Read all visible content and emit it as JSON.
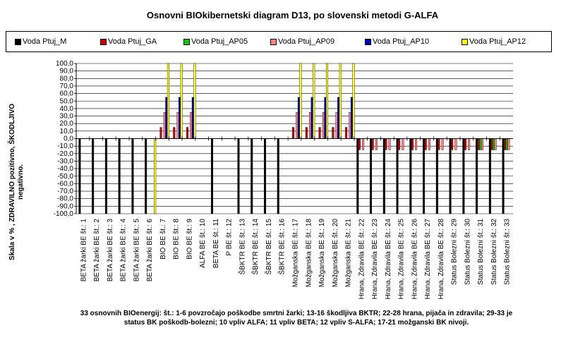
{
  "chart_data": {
    "type": "bar",
    "title": "Osnovni BIOkibernetski diagram D13, po slovenski metodi G-ALFA",
    "ylabel": "Skala v % , ZDRAVILNO pozitivno, ŠKODLJIVO negativno.",
    "xlabel": "33 osnovnih BIOenergij: št.: 1-6 povzročajo poškodbe smrtni žarki; 13-16 škodljiva BKTR; 22-28 hrana, pijača in zdravila; 29-33 je status BK poškodb-bolezni; 10 vpliv ALFA; 11 vpliv BETA; 12 vpliv S-ALFA; 17-21 možganski BK nivoji.",
    "ylim": [
      -100,
      100
    ],
    "ytick_step": 10,
    "y_ticks": [
      "100,0",
      "90,0",
      "80,0",
      "70,0",
      "60,0",
      "50,0",
      "40,0",
      "30,0",
      "20,0",
      "10,0",
      "0,0",
      "-10,0",
      "-20,0",
      "-30,0",
      "-40,0",
      "-50,0",
      "-60,0",
      "-70,0",
      "-80,0",
      "-90,0",
      "-100,0"
    ],
    "grid": true,
    "legend_position": "top",
    "categories": [
      "BETA žarki BE št.: 1",
      "BETA žarki BE št.: 2",
      "BETA žarki BE št.: 3",
      "BETA žarki BE št.: 4",
      "BETA žarki BE št.: 5",
      "BETA žarki BE št.: 6",
      "BIO BE št.: 7",
      "BIO BE št.: 8",
      "BIO BE št.: 9",
      "ALFA BE št.: 10",
      "BETA BE št.: 11",
      "P BE št.: 12",
      "ŠBKTR BE št.: 13",
      "ŠBKTR BE št.: 14",
      "ŠBKTR BE št.: 15",
      "ŠBKTR BE št.: 16",
      "Možganska BE št.: 17",
      "Možganska BE št.: 18",
      "Možganska BE št.: 19",
      "Možganska BE št.: 20",
      "Možganska BE št.: 21",
      "Hrana, Zdravila BE št.: 22",
      "Hrana, Zdravila BE št.: 23",
      "Hrana, Zdravila BE št.: 24",
      "Hrana, Zdravila BE št.: 25",
      "Hrana, Zdravila BE št.: 26",
      "Hrana, Zdravila BE št.: 27",
      "Hrana, Zdravila BE št.: 28",
      "Status Bolezni št.: 29",
      "Status Bolezni št.: 30",
      "Status Bolezni št.: 31",
      "Status Bolezni št.: 32",
      "Status Bolezni št.: 33"
    ],
    "series": [
      {
        "name": "Voda Ptuj_M",
        "color": "#000000",
        "values": [
          -100,
          -100,
          -100,
          -100,
          -100,
          -100,
          0,
          0,
          0,
          0,
          -100,
          0,
          -100,
          -100,
          -100,
          -100,
          0,
          0,
          0,
          0,
          0,
          -100,
          -100,
          -100,
          -100,
          -100,
          -100,
          -100,
          -100,
          -100,
          -100,
          -100,
          -100
        ]
      },
      {
        "name": "Voda Ptuj_GA",
        "color": "#cc0000",
        "values": [
          0,
          0,
          0,
          0,
          0,
          0,
          15,
          15,
          15,
          0,
          0,
          0,
          0,
          0,
          0,
          0,
          15,
          15,
          15,
          15,
          15,
          -15,
          -15,
          -15,
          -15,
          -15,
          -15,
          -15,
          -15,
          -15,
          -15,
          -15,
          -15
        ]
      },
      {
        "name": "Voda Ptuj_AP05",
        "color": "#00cc00",
        "values": [
          0,
          0,
          0,
          0,
          0,
          0,
          0,
          0,
          0,
          0,
          0,
          0,
          0,
          0,
          0,
          0,
          0,
          0,
          0,
          0,
          0,
          0,
          0,
          0,
          0,
          0,
          0,
          0,
          0,
          0,
          -15,
          -15,
          -15
        ]
      },
      {
        "name": "Voda Ptuj_AP09",
        "color": "#ff8080",
        "values": [
          0,
          0,
          0,
          0,
          0,
          0,
          35,
          35,
          35,
          0,
          0,
          0,
          0,
          0,
          0,
          0,
          35,
          35,
          35,
          35,
          35,
          -15,
          -15,
          -15,
          -15,
          -15,
          -15,
          -15,
          -15,
          -15,
          -15,
          -15,
          -15
        ]
      },
      {
        "name": "Voda Ptuj_AP10",
        "color": "#0000cc",
        "values": [
          0,
          0,
          0,
          0,
          0,
          0,
          55,
          55,
          55,
          0,
          0,
          0,
          0,
          0,
          0,
          0,
          55,
          55,
          55,
          55,
          55,
          0,
          0,
          0,
          0,
          0,
          0,
          0,
          0,
          0,
          0,
          0,
          0
        ]
      },
      {
        "name": "Voda Ptuj_AP12",
        "color": "#ffff00",
        "values": [
          0,
          0,
          0,
          0,
          0,
          -100,
          100,
          100,
          100,
          0,
          0,
          0,
          0,
          0,
          0,
          0,
          100,
          100,
          100,
          100,
          100,
          0,
          0,
          0,
          0,
          0,
          0,
          0,
          0,
          0,
          0,
          0,
          0
        ]
      }
    ]
  }
}
